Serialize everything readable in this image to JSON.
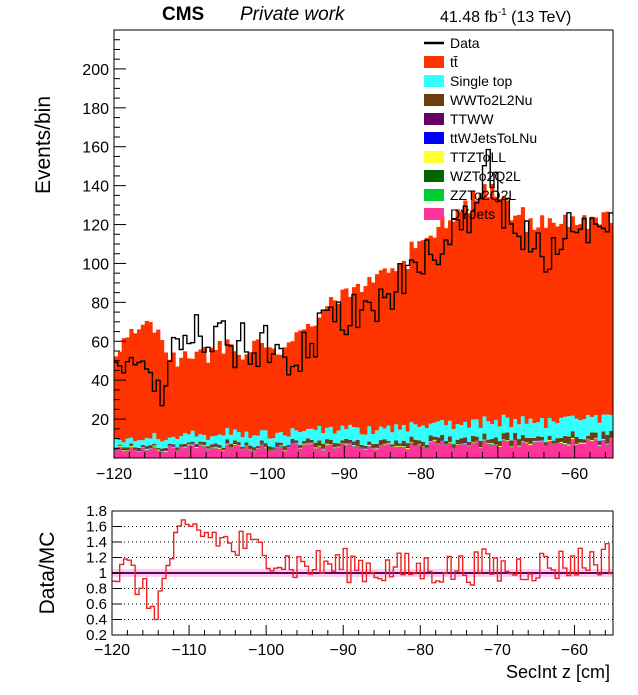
{
  "header": {
    "experiment": "CMS",
    "status": "Private work",
    "lumi_value": "41.48 fb",
    "lumi_exp": "-1",
    "energy": " (13 TeV)"
  },
  "chart_data": [
    {
      "type": "bar",
      "subtype": "stacked-histogram",
      "ylabel": "Events/bin",
      "xlim": [
        -120,
        -55
      ],
      "ylim": [
        0,
        220
      ],
      "xticks": [
        -120,
        -110,
        -100,
        -90,
        -80,
        -70,
        -60
      ],
      "yticks": [
        20,
        40,
        60,
        80,
        100,
        120,
        140,
        160,
        180,
        200
      ],
      "legend_position": "top-right",
      "legend": [
        {
          "label": "Data",
          "color": "#000000",
          "style": "line"
        },
        {
          "label": "tt̄",
          "color": "#ff3300",
          "style": "fill"
        },
        {
          "label": "Single top",
          "color": "#33ffff",
          "style": "fill"
        },
        {
          "label": "WWTo2L2Nu",
          "color": "#6b3e10",
          "style": "fill"
        },
        {
          "label": "TTWW",
          "color": "#660066",
          "style": "fill"
        },
        {
          "label": "ttWJetsToLNu",
          "color": "#0000ff",
          "style": "fill"
        },
        {
          "label": "TTZToLL",
          "color": "#ffff33",
          "style": "fill"
        },
        {
          "label": "WZTo2Q2L",
          "color": "#006600",
          "style": "fill"
        },
        {
          "label": "ZZTo2Q2L",
          "color": "#00cc33",
          "style": "fill"
        },
        {
          "label": "DYJets",
          "color": "#ff3399",
          "style": "fill"
        }
      ],
      "nbins": 130,
      "ttbar_profile": {
        "x": [
          -120,
          -119,
          -118,
          -117,
          -116,
          -115,
          -114,
          -113,
          -112,
          -110,
          -108,
          -105,
          -103,
          -101,
          -100,
          -98,
          -96,
          -94,
          -92,
          -90,
          -88,
          -86,
          -84,
          -82,
          -80,
          -78,
          -76,
          -74,
          -73,
          -72,
          -71,
          -70,
          -69,
          -68,
          -67,
          -66,
          -64,
          -62,
          -60,
          -58,
          -56,
          -55
        ],
        "y": [
          38,
          50,
          55,
          57,
          60,
          55,
          52,
          45,
          40,
          40,
          42,
          45,
          44,
          45,
          42,
          44,
          48,
          55,
          62,
          68,
          72,
          78,
          82,
          86,
          92,
          98,
          104,
          112,
          115,
          118,
          120,
          118,
          112,
          108,
          104,
          100,
          100,
          101,
          100,
          100,
          100,
          101
        ]
      },
      "data_profile": {
        "x": [
          -120,
          -119,
          -118,
          -117,
          -116,
          -115,
          -114,
          -113,
          -112,
          -111,
          -110,
          -109,
          -108,
          -106,
          -104,
          -103,
          -102,
          -100,
          -98,
          -96,
          -94,
          -92,
          -90,
          -88,
          -86,
          -84,
          -82,
          -80,
          -78,
          -76,
          -74,
          -73,
          -72,
          -71,
          -70,
          -69,
          -68,
          -66,
          -64,
          -62,
          -60,
          -58,
          -56,
          -55
        ],
        "y": [
          42,
          50,
          55,
          52,
          45,
          33,
          30,
          40,
          55,
          60,
          62,
          68,
          62,
          65,
          55,
          62,
          57,
          58,
          50,
          52,
          62,
          68,
          72,
          78,
          80,
          85,
          92,
          100,
          105,
          112,
          125,
          130,
          145,
          150,
          135,
          125,
          118,
          112,
          105,
          112,
          118,
          118,
          125,
          128
        ]
      }
    },
    {
      "type": "line",
      "subtype": "ratio-step",
      "ylabel": "Data/MC",
      "xlabel": "SecInt z [cm]",
      "xlim": [
        -120,
        -55
      ],
      "ylim": [
        0.2,
        1.8
      ],
      "xticks": [
        -120,
        -110,
        -100,
        -90,
        -80,
        -70,
        -60
      ],
      "yticks": [
        0.2,
        0.4,
        0.6,
        0.8,
        1,
        1.2,
        1.4,
        1.6,
        1.8
      ],
      "grid": "horizontal-dotted",
      "reference_line": 1.0,
      "ratio_profile": {
        "x": [
          -120,
          -119,
          -118,
          -117,
          -116,
          -115,
          -114,
          -113,
          -112,
          -111,
          -110,
          -109,
          -108,
          -106,
          -104,
          -103,
          -102,
          -100,
          -98,
          -96,
          -94,
          -92,
          -90,
          -88,
          -86,
          -84,
          -82,
          -80,
          -78,
          -76,
          -74,
          -72,
          -70,
          -68,
          -66,
          -64,
          -62,
          -60,
          -58,
          -56,
          -55
        ],
        "y": [
          1.0,
          1.0,
          1.05,
          0.95,
          0.75,
          0.58,
          0.6,
          0.95,
          1.35,
          1.45,
          1.5,
          1.55,
          1.5,
          1.45,
          1.3,
          1.4,
          1.3,
          1.3,
          1.15,
          1.1,
          1.1,
          1.1,
          1.1,
          1.1,
          1.05,
          1.05,
          1.05,
          1.05,
          1.05,
          1.05,
          1.05,
          1.1,
          1.05,
          1.05,
          1.1,
          1.1,
          1.1,
          1.15,
          1.15,
          1.2,
          1.2
        ]
      }
    }
  ]
}
